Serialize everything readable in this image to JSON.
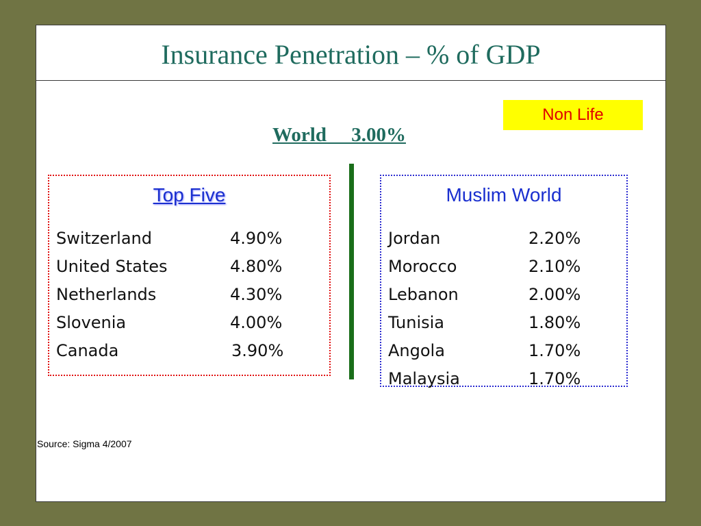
{
  "slide": {
    "title": "Insurance Penetration – % of GDP",
    "badge": "Non Life",
    "world_label": "World     3.00%",
    "source": "Source: Sigma 4/2007"
  },
  "top_five": {
    "title": "Top Five",
    "rows": [
      {
        "country": "Switzerland",
        "value": "4.90%"
      },
      {
        "country": "United States",
        "value": "4.80%"
      },
      {
        "country": "Netherlands",
        "value": "4.30%"
      },
      {
        "country": "Slovenia",
        "value": "4.00%"
      },
      {
        "country": "Canada",
        "value": "3.90%"
      }
    ]
  },
  "muslim_world": {
    "title": "Muslim World",
    "rows": [
      {
        "country": "Jordan",
        "value": "2.20%"
      },
      {
        "country": "Morocco",
        "value": "2.10%"
      },
      {
        "country": "Lebanon",
        "value": "2.00%"
      },
      {
        "country": "Tunisia",
        "value": "1.80%"
      },
      {
        "country": "Angola",
        "value": "1.70%"
      },
      {
        "country": "Malaysia",
        "value": "1.70%"
      }
    ]
  },
  "colors": {
    "background": "#707444",
    "title": "#1f6b5e",
    "badge_bg": "#ffff00",
    "badge_text": "#e00000",
    "divider": "#1a6e1a",
    "left_box_border": "#e01010",
    "right_box_border": "#2a2ad0",
    "box_title": "#1a2fcf"
  }
}
